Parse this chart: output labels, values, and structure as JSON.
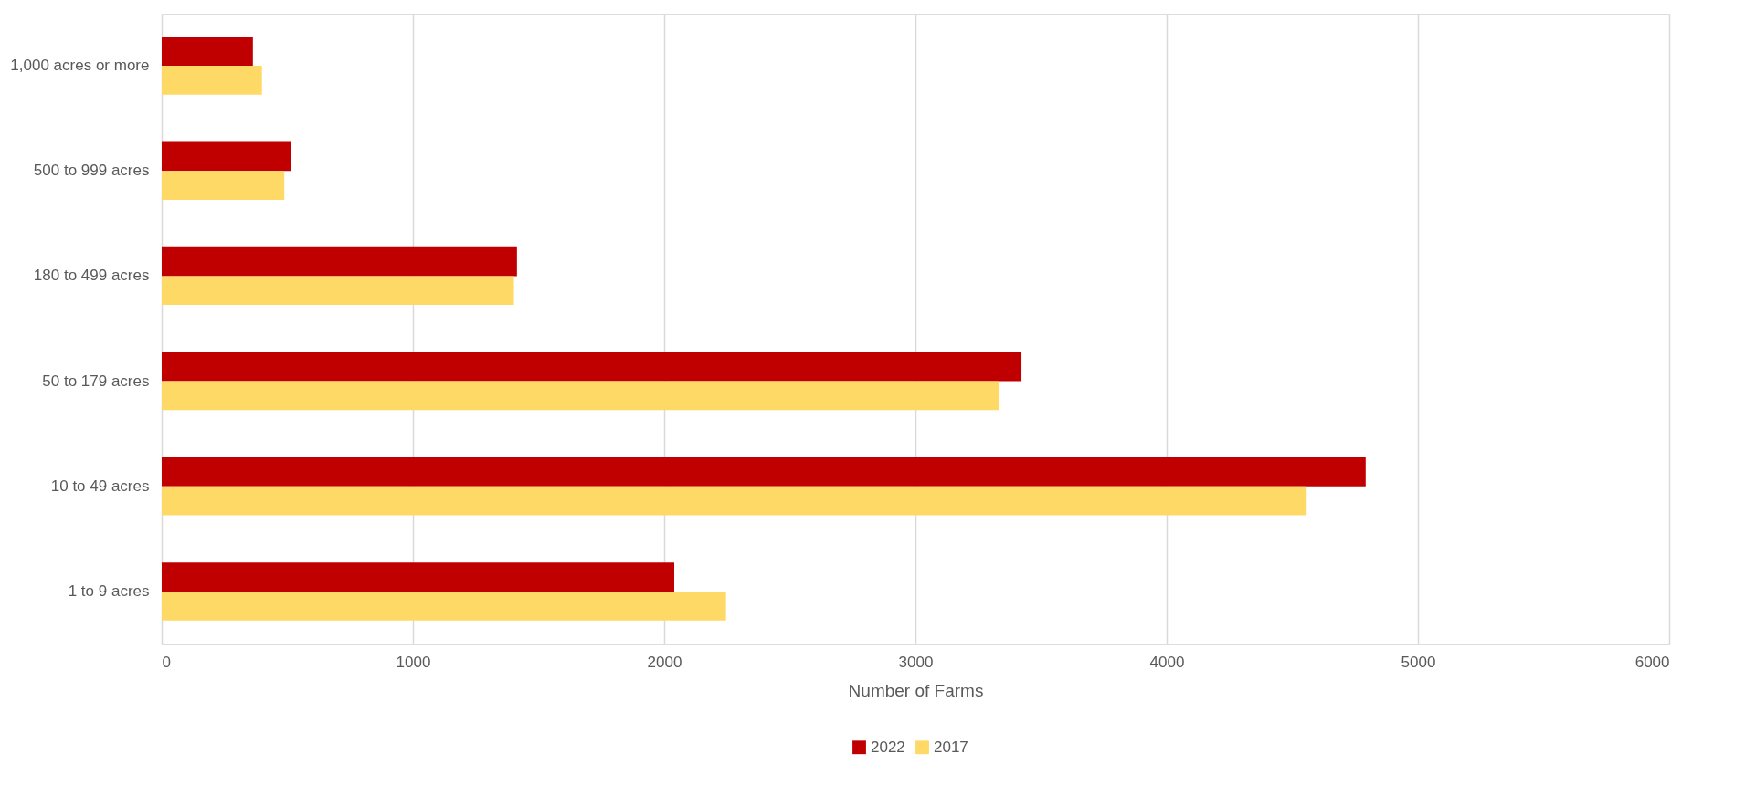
{
  "chart_data": {
    "type": "bar",
    "orientation": "horizontal",
    "xlabel": "Number of Farms",
    "categories": [
      "1,000 acres or more",
      "500 to 999 acres",
      "180 to 499 acres",
      "50 to 179 acres",
      "10 to 49 acres",
      "1 to 9 acres"
    ],
    "series": [
      {
        "name": "2022",
        "color": "#c00000",
        "values": [
          363,
          513,
          1414,
          3422,
          4792,
          2040
        ]
      },
      {
        "name": "2017",
        "color": "#ffd966",
        "values": [
          399,
          488,
          1402,
          3333,
          4557,
          2246
        ]
      }
    ],
    "xlim": [
      0,
      6000
    ],
    "xticks": [
      0,
      1000,
      2000,
      3000,
      4000,
      5000,
      6000
    ],
    "grid": "x",
    "legend": "bottom"
  }
}
